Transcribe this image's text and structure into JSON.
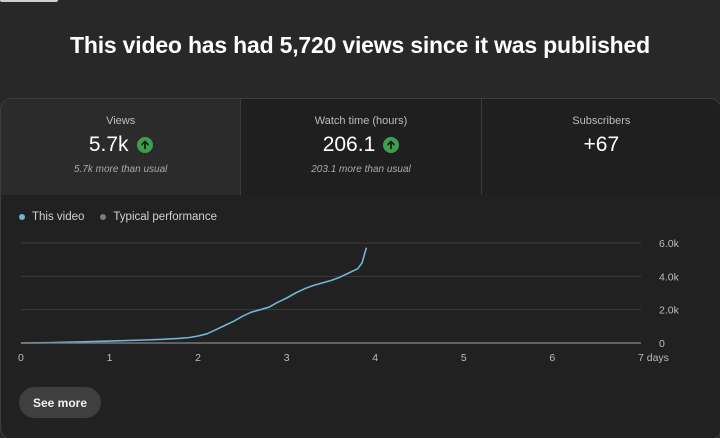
{
  "headline": "This video has had 5,720 views since it was published",
  "stats": [
    {
      "label": "Views",
      "value": "5.7k",
      "trend": "up",
      "sub": "5.7k more than usual"
    },
    {
      "label": "Watch time (hours)",
      "value": "206.1",
      "trend": "up",
      "sub": "203.1 more than usual"
    },
    {
      "label": "Subscribers",
      "value": "+67",
      "trend": "",
      "sub": ""
    }
  ],
  "legend": {
    "this_video": "This video",
    "typical": "Typical performance"
  },
  "colors": {
    "this_video": "#6fb6d8",
    "typical": "#7a7a7a",
    "up": "#3aa14a"
  },
  "see_more_label": "See more",
  "chart_data": {
    "type": "line",
    "x_tick_labels": [
      "0",
      "1",
      "2",
      "3",
      "4",
      "5",
      "6",
      "7 days"
    ],
    "y_tick_labels": [
      "0",
      "2.0k",
      "4.0k",
      "6.0k"
    ],
    "xlim": [
      0,
      7
    ],
    "ylim": [
      0,
      6000
    ],
    "grid": true,
    "legend_position": "top-left",
    "series": [
      {
        "name": "This video",
        "x": [
          0,
          0.3,
          0.6,
          0.9,
          1.2,
          1.4,
          1.6,
          1.8,
          1.9,
          2.0,
          2.1,
          2.2,
          2.3,
          2.4,
          2.5,
          2.6,
          2.7,
          2.8,
          2.9,
          3.0,
          3.1,
          3.2,
          3.3,
          3.4,
          3.5,
          3.6,
          3.7,
          3.8,
          3.85,
          3.9
        ],
        "y": [
          0,
          20,
          60,
          100,
          150,
          180,
          220,
          280,
          330,
          420,
          550,
          800,
          1050,
          1300,
          1600,
          1850,
          2000,
          2150,
          2450,
          2700,
          3000,
          3250,
          3450,
          3600,
          3750,
          3950,
          4200,
          4450,
          4800,
          5720
        ]
      },
      {
        "name": "Typical performance",
        "x": [
          0,
          1,
          2,
          3,
          4,
          5,
          6,
          7
        ],
        "y": [
          0,
          0,
          0,
          0,
          0,
          0,
          0,
          0
        ]
      }
    ]
  }
}
